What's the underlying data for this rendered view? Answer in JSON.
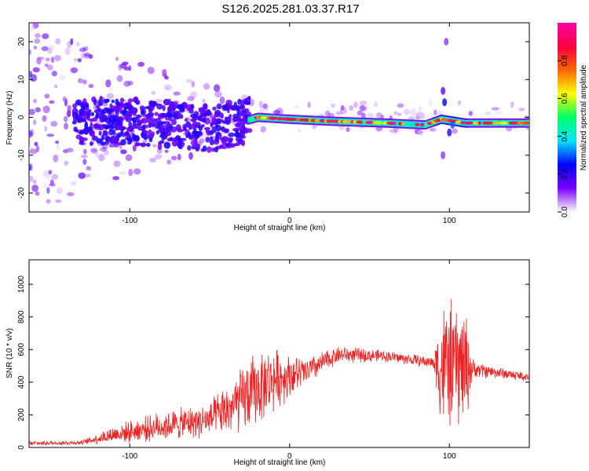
{
  "title": "S126.2025.281.03.37.R17",
  "chart_data": [
    {
      "type": "heatmap",
      "xlabel": "Height of straight line (km)",
      "ylabel": "Frequency (Hz)",
      "xlim": [
        -163,
        150
      ],
      "ylim": [
        -25,
        25
      ],
      "x_ticks": [
        -100,
        0,
        100
      ],
      "y_ticks": [
        -20,
        -10,
        0,
        10,
        20
      ],
      "colorbar": {
        "label": "Normalized spectral amplitude",
        "range": [
          0,
          1
        ],
        "ticks": [
          0.0,
          0.2,
          0.4,
          0.6,
          0.8
        ],
        "colors": [
          "#ffffff",
          "#7a00ff",
          "#0000ff",
          "#00e5ff",
          "#00ff66",
          "#ffff00",
          "#ff6600",
          "#ff0040",
          "#ff00aa"
        ]
      },
      "ridge_line": {
        "description": "dominant signal ridge",
        "points": [
          {
            "x": -130,
            "y": -1.0
          },
          {
            "x": -100,
            "y": -1.0
          },
          {
            "x": -75,
            "y": -2.0
          },
          {
            "x": -45,
            "y": -3.0
          },
          {
            "x": -28,
            "y": -1.0
          },
          {
            "x": -20,
            "y": 0.0
          },
          {
            "x": 0,
            "y": -0.5
          },
          {
            "x": 25,
            "y": -1.0
          },
          {
            "x": 60,
            "y": -1.5
          },
          {
            "x": 85,
            "y": -2.0
          },
          {
            "x": 95,
            "y": -0.5
          },
          {
            "x": 110,
            "y": -1.5
          },
          {
            "x": 150,
            "y": -1.5
          }
        ]
      }
    },
    {
      "type": "line",
      "xlabel": "Height of straight line (km)",
      "ylabel": "SNR (10 * v/v)",
      "xlim": [
        -163,
        150
      ],
      "ylim": [
        0,
        1150
      ],
      "x_ticks": [
        -100,
        0,
        100
      ],
      "y_ticks": [
        0,
        200,
        400,
        600,
        800,
        1000
      ],
      "color": "#ee2222",
      "envelope": [
        {
          "x": -163,
          "mean": 25,
          "spread": 15
        },
        {
          "x": -130,
          "mean": 30,
          "spread": 15
        },
        {
          "x": -110,
          "mean": 80,
          "spread": 60
        },
        {
          "x": -80,
          "mean": 130,
          "spread": 100
        },
        {
          "x": -50,
          "mean": 170,
          "spread": 120
        },
        {
          "x": -35,
          "mean": 250,
          "spread": 200
        },
        {
          "x": -25,
          "mean": 330,
          "spread": 260
        },
        {
          "x": -10,
          "mean": 420,
          "spread": 220
        },
        {
          "x": 0,
          "mean": 440,
          "spread": 150
        },
        {
          "x": 10,
          "mean": 460,
          "spread": 100
        },
        {
          "x": 30,
          "mean": 570,
          "spread": 60
        },
        {
          "x": 60,
          "mean": 560,
          "spread": 40
        },
        {
          "x": 90,
          "mean": 520,
          "spread": 40
        },
        {
          "x": 95,
          "mean": 500,
          "spread": 450
        },
        {
          "x": 110,
          "mean": 500,
          "spread": 420
        },
        {
          "x": 115,
          "mean": 480,
          "spread": 60
        },
        {
          "x": 130,
          "mean": 460,
          "spread": 40
        },
        {
          "x": 150,
          "mean": 430,
          "spread": 30
        }
      ]
    }
  ]
}
